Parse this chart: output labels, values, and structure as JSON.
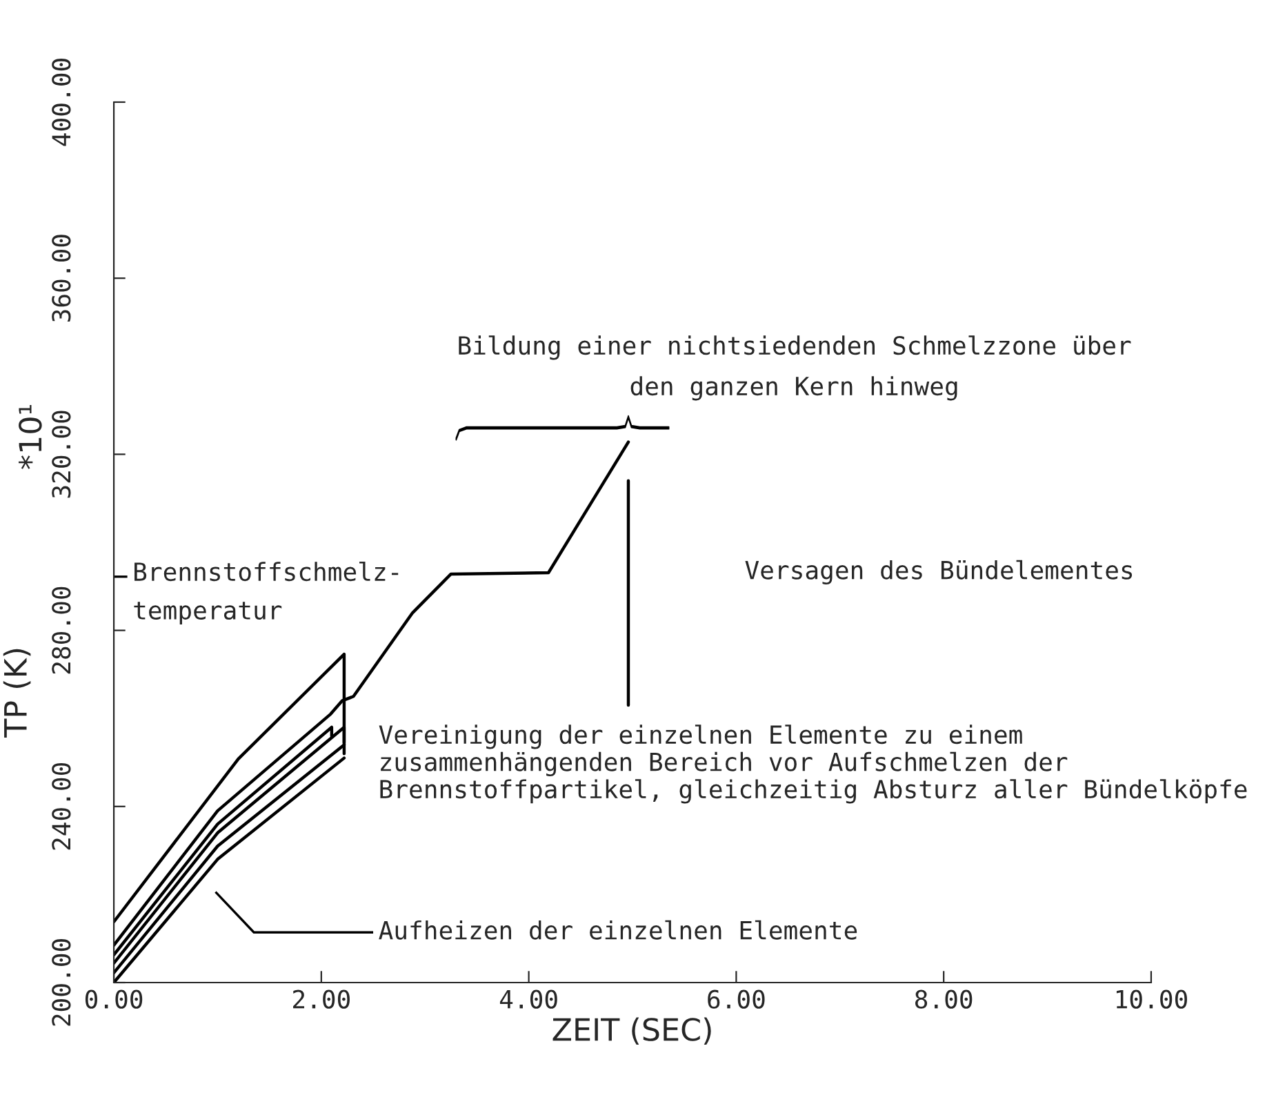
{
  "chart_data": {
    "type": "line",
    "xlabel": "ZEIT (SEC)",
    "ylabel": "TP (K)",
    "xlim": [
      0,
      10
    ],
    "xticks": [
      {
        "value": 0,
        "label": "0.00"
      },
      {
        "value": 2,
        "label": "2.00"
      },
      {
        "value": 4,
        "label": "4.00"
      },
      {
        "value": 6,
        "label": "6.00"
      },
      {
        "value": 8,
        "label": "8.00"
      },
      {
        "value": 10,
        "label": "10.00"
      }
    ],
    "ylim": [
      200,
      400
    ],
    "yticks": [
      {
        "value": 200,
        "label": "200.00"
      },
      {
        "value": 240,
        "label": "240.00"
      },
      {
        "value": 280,
        "label": "280.00"
      },
      {
        "value": 320,
        "label": "320.00"
      },
      {
        "value": 360,
        "label": "360.00"
      },
      {
        "value": 400,
        "label": "400.00"
      }
    ],
    "series": [
      {
        "color": "#000000",
        "x": [
          0,
          1.2,
          2.22,
          2.22
        ],
        "values": [
          213.8,
          250.8,
          274.6,
          254.5
        ]
      },
      {
        "color": "#000000",
        "x": [
          0,
          1.0,
          2.09,
          2.2,
          2.31,
          2.88,
          3.25,
          4.19,
          4.96
        ],
        "values": [
          208.5,
          239,
          261,
          264,
          265,
          284,
          292.8,
          293.1,
          322.8
        ]
      },
      {
        "color": "#000000",
        "x": [
          0,
          1.0,
          2.1,
          2.1
        ],
        "values": [
          206.3,
          236,
          258,
          256
        ]
      },
      {
        "color": "#000000",
        "x": [
          0,
          1.0,
          2.22,
          2.22
        ],
        "values": [
          204.4,
          234,
          258,
          252
        ]
      },
      {
        "color": "#000000",
        "x": [
          0,
          1.0,
          2.22
        ],
        "values": [
          202.2,
          231,
          254
        ]
      },
      {
        "color": "#000000",
        "x": [
          0,
          1.0,
          2.22
        ],
        "values": [
          200,
          228,
          251
        ]
      },
      {
        "color": "#000000",
        "x": [
          4.96,
          4.96
        ],
        "values": [
          314,
          263
        ]
      }
    ],
    "annotations": [
      "Brennstoffschmelz-\ntemperatur",
      "Bildung einer nichtsiedenden Schmelzzone über\nden ganzen Kern hinweg",
      "Versagen des Bündelementes",
      "Vereinigung der einzelnen Elemente zu einem\nzusammenhängenden Bereich vor Aufschmelzen der\nBrennstoffpartikel, gleichzeitig Absturz aller Bündelköpfe",
      "Aufheizen der einzelnen Elemente",
      "*10¹"
    ],
    "grid": false,
    "legend": false
  }
}
